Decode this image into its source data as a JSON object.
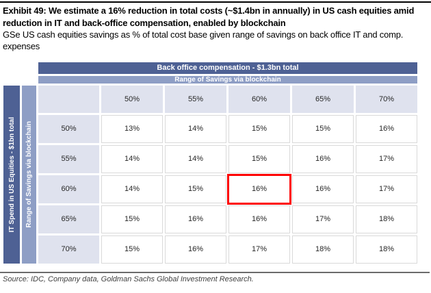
{
  "title": "Exhibit 49: We estimate a 16% reduction in total costs (~$1.4bn in annually) in US cash equities amid reduction in IT and back-office compensation, enabled by blockchain",
  "subtitle": "GSe US cash equities savings as % of total cost base given range of savings on back office  IT and comp. expenses",
  "table": {
    "top_header_primary": "Back office compensation - $1.3bn total",
    "top_header_secondary": "Range of Savings via blockchain",
    "left_header_primary": "IT Spend in US Equities - $1bn  total",
    "left_header_secondary": "Range of Savings via blockchain",
    "column_headers": [
      "50%",
      "55%",
      "60%",
      "65%",
      "70%"
    ],
    "rows": [
      {
        "label": "50%",
        "values": [
          "13%",
          "14%",
          "15%",
          "15%",
          "16%"
        ]
      },
      {
        "label": "55%",
        "values": [
          "14%",
          "14%",
          "15%",
          "16%",
          "17%"
        ]
      },
      {
        "label": "60%",
        "values": [
          "14%",
          "15%",
          "16%",
          "16%",
          "17%"
        ]
      },
      {
        "label": "65%",
        "values": [
          "15%",
          "16%",
          "16%",
          "17%",
          "18%"
        ]
      },
      {
        "label": "70%",
        "values": [
          "15%",
          "16%",
          "17%",
          "18%",
          "18%"
        ]
      }
    ],
    "highlight": {
      "row_index": 2,
      "col_index": 2,
      "row_label": "60%",
      "col_label": "60%"
    }
  },
  "source": "Source: IDC, Company data, Goldman Sachs Global Investment Research.",
  "colors": {
    "dark_blue": "#4e6194",
    "medium_blue": "#8e9ec5",
    "light_cell": "#dfe2ee",
    "cell_border": "#d9d9d9",
    "highlight_red": "#fe0000"
  }
}
